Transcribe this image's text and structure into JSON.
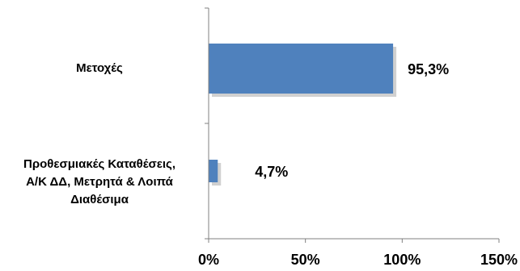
{
  "chart_data": {
    "type": "bar",
    "orientation": "horizontal",
    "categories": [
      "Μετοχές",
      "Προθεσμιακές Καταθέσεις, Α/Κ ΔΔ, Μετρητά & Λοιπά Διαθέσιμα"
    ],
    "category_label_lines": [
      [
        "Μετοχές"
      ],
      [
        "Προθεσμιακές Καταθέσεις,",
        "Α/Κ ΔΔ, Μετρητά & Λοιπά",
        "Διαθέσιμα"
      ]
    ],
    "values": [
      95.3,
      4.7
    ],
    "data_labels": [
      "95,3%",
      "4,7%"
    ],
    "xlim": [
      0,
      150
    ],
    "xticks": [
      0,
      50,
      100,
      150
    ],
    "xtick_labels": [
      "0%",
      "50%",
      "100%",
      "150%"
    ],
    "title": "",
    "xlabel": "",
    "ylabel": "",
    "grid": false,
    "legend": "none",
    "bar_color": "#4F81BD"
  }
}
